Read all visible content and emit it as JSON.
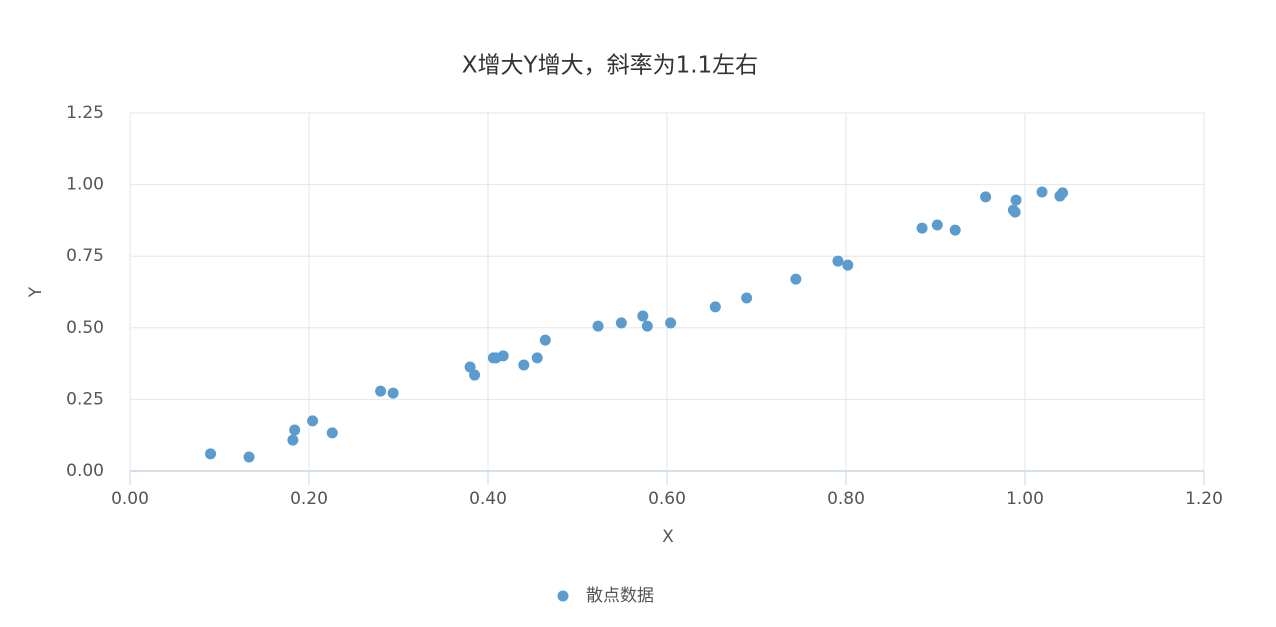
{
  "chart_data": {
    "type": "scatter",
    "title": "X增大Y增大，斜率为1.1左右",
    "x_label": "X",
    "y_label": "Y",
    "series": [
      {
        "name": "散点数据",
        "color": "#5b9bcd",
        "x": [
          0.09,
          0.133,
          0.182,
          0.184,
          0.204,
          0.226,
          0.28,
          0.294,
          0.38,
          0.385,
          0.406,
          0.409,
          0.417,
          0.44,
          0.455,
          0.464,
          0.523,
          0.549,
          0.573,
          0.578,
          0.604,
          0.654,
          0.689,
          0.744,
          0.791,
          0.802,
          0.885,
          0.902,
          0.922,
          0.956,
          0.987,
          0.989,
          0.99,
          1.019,
          1.039,
          1.042
        ],
        "values": [
          0.06,
          0.049,
          0.108,
          0.143,
          0.175,
          0.133,
          0.279,
          0.272,
          0.363,
          0.335,
          0.395,
          0.395,
          0.402,
          0.37,
          0.395,
          0.457,
          0.506,
          0.517,
          0.541,
          0.506,
          0.517,
          0.573,
          0.604,
          0.67,
          0.733,
          0.719,
          0.848,
          0.859,
          0.841,
          0.957,
          0.911,
          0.904,
          0.946,
          0.974,
          0.96,
          0.971
        ]
      }
    ],
    "xlim": [
      0,
      1.2
    ],
    "xticks": [
      {
        "value": 0,
        "label": "0.00"
      },
      {
        "value": 0.2,
        "label": "0.20"
      },
      {
        "value": 0.4,
        "label": "0.40"
      },
      {
        "value": 0.6,
        "label": "0.60"
      },
      {
        "value": 0.8,
        "label": "0.80"
      },
      {
        "value": 1,
        "label": "1.00"
      },
      {
        "value": 1.2,
        "label": "1.20"
      }
    ],
    "ylim": [
      0,
      1.25
    ],
    "yticks": [
      {
        "value": 0,
        "label": "0.00"
      },
      {
        "value": 0.25,
        "label": "0.25"
      },
      {
        "value": 0.5,
        "label": "0.50"
      },
      {
        "value": 0.75,
        "label": "0.75"
      },
      {
        "value": 1,
        "label": "1.00"
      },
      {
        "value": 1.25,
        "label": "1.25"
      }
    ],
    "grid": true,
    "legend": "bottom"
  }
}
